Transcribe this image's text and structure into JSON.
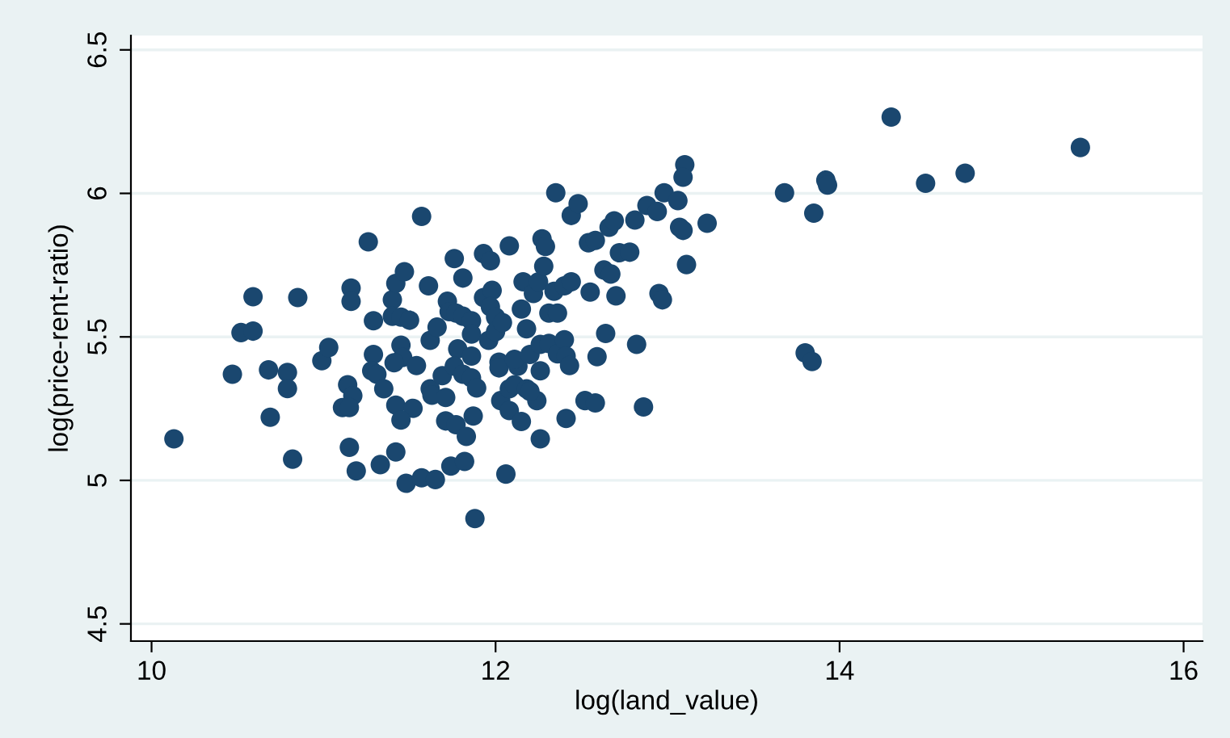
{
  "chart_data": {
    "type": "scatter",
    "xlabel": "log(land_value)",
    "ylabel": "log(price-rent-ratio)",
    "xlim": [
      9.88,
      16.11
    ],
    "ylim": [
      4.44,
      6.55
    ],
    "xticks": [
      10,
      12,
      14,
      16
    ],
    "yticks": [
      4.5,
      5,
      5.5,
      6,
      6.5
    ],
    "grid": "y",
    "marker": "circle",
    "series": [
      {
        "color": "#1a476f",
        "x": [
          10.13,
          10.47,
          10.52,
          10.59,
          10.59,
          10.68,
          10.69,
          10.79,
          10.79,
          10.82,
          10.85,
          10.99,
          11.03,
          11.16,
          11.16,
          11.26,
          11.14,
          11.17,
          11.11,
          11.15,
          11.15,
          11.19,
          11.29,
          11.29,
          11.28,
          11.31,
          11.33,
          11.35,
          11.4,
          11.42,
          11.47,
          11.4,
          11.45,
          11.5,
          11.45,
          11.46,
          11.41,
          11.42,
          11.52,
          11.45,
          11.42,
          11.48,
          11.57,
          11.65,
          11.54,
          11.57,
          11.61,
          11.62,
          11.66,
          11.62,
          11.63,
          11.69,
          11.71,
          11.71,
          11.77,
          11.74,
          11.82,
          11.76,
          11.81,
          11.72,
          11.73,
          11.77,
          11.81,
          11.86,
          11.78,
          11.86,
          11.86,
          11.76,
          11.81,
          11.86,
          11.89,
          11.83,
          11.87,
          11.88,
          11.93,
          11.97,
          11.93,
          11.98,
          11.97,
          12.0,
          11.96,
          12.0,
          12.04,
          12.02,
          12.02,
          12.08,
          12.03,
          12.08,
          12.08,
          12.11,
          12.06,
          12.13,
          12.11,
          12.15,
          12.15,
          12.16,
          12.18,
          12.22,
          12.25,
          12.28,
          12.27,
          12.29,
          12.2,
          12.26,
          12.18,
          12.24,
          12.2,
          12.26,
          12.26,
          12.31,
          12.36,
          12.31,
          12.36,
          12.35,
          12.34,
          12.4,
          12.44,
          12.4,
          12.41,
          12.43,
          12.41,
          12.44,
          12.48,
          12.54,
          12.58,
          12.55,
          12.52,
          12.58,
          12.59,
          12.63,
          12.67,
          12.64,
          12.66,
          12.69,
          12.7,
          12.72,
          12.78,
          12.81,
          12.82,
          12.86,
          12.88,
          12.94,
          12.98,
          12.95,
          12.97,
          13.06,
          13.07,
          13.09,
          13.1,
          13.09,
          13.11,
          13.23,
          13.68,
          13.85,
          13.8,
          13.84,
          13.92,
          13.93,
          14.3,
          14.5,
          14.73,
          15.4
        ],
        "values": [
          5.145,
          5.37,
          5.515,
          5.52,
          5.64,
          5.385,
          5.22,
          5.376,
          5.32,
          5.074,
          5.637,
          5.417,
          5.463,
          5.67,
          5.624,
          5.831,
          5.333,
          5.295,
          5.254,
          5.254,
          5.115,
          5.033,
          5.556,
          5.439,
          5.382,
          5.37,
          5.055,
          5.319,
          5.629,
          5.686,
          5.727,
          5.572,
          5.569,
          5.558,
          5.471,
          5.428,
          5.41,
          5.262,
          5.251,
          5.21,
          5.099,
          4.99,
          5.009,
          5.003,
          5.4,
          5.92,
          5.678,
          5.488,
          5.534,
          5.319,
          5.297,
          5.365,
          5.289,
          5.207,
          5.194,
          5.05,
          5.066,
          5.773,
          5.705,
          5.624,
          5.588,
          5.583,
          5.572,
          5.556,
          5.458,
          5.433,
          5.51,
          5.398,
          5.37,
          5.357,
          5.322,
          5.153,
          5.224,
          4.867,
          5.79,
          5.765,
          5.637,
          5.662,
          5.605,
          5.569,
          5.488,
          5.518,
          5.55,
          5.412,
          5.392,
          5.817,
          5.278,
          5.243,
          5.319,
          5.333,
          5.022,
          5.398,
          5.422,
          5.205,
          5.597,
          5.692,
          5.528,
          5.651,
          5.692,
          5.746,
          5.842,
          5.815,
          5.439,
          5.474,
          5.319,
          5.278,
          5.31,
          5.382,
          5.145,
          5.477,
          5.441,
          5.583,
          5.583,
          6.002,
          5.659,
          5.678,
          5.692,
          5.49,
          5.433,
          5.4,
          5.216,
          5.923,
          5.964,
          5.828,
          5.836,
          5.656,
          5.278,
          5.27,
          5.431,
          5.733,
          5.719,
          5.512,
          5.882,
          5.904,
          5.643,
          5.793,
          5.795,
          5.907,
          5.474,
          5.256,
          5.958,
          5.937,
          6.002,
          5.651,
          5.629,
          5.975,
          5.882,
          5.871,
          6.1,
          6.056,
          5.752,
          5.896,
          6.002,
          5.931,
          5.444,
          5.414,
          6.046,
          6.029,
          6.266,
          6.035,
          6.07,
          6.16
        ]
      }
    ]
  }
}
